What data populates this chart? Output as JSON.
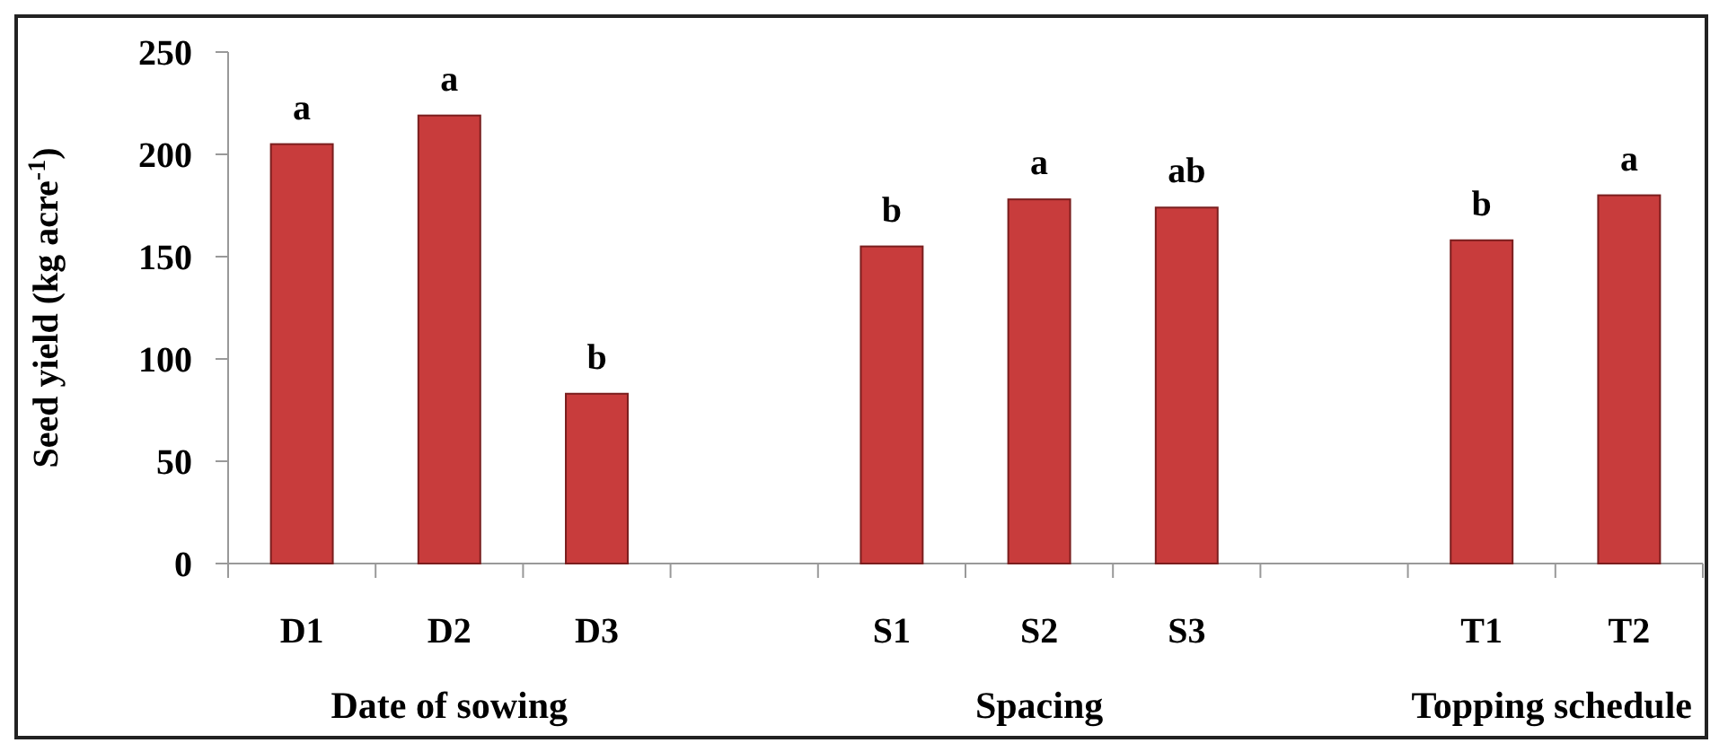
{
  "chart_data": {
    "type": "bar",
    "ylabel": "Seed yield (kg acre$^{-1}$)",
    "categories": [
      "D1",
      "D2",
      "D3",
      null,
      "S1",
      "S2",
      "S3",
      null,
      "T1",
      "T2"
    ],
    "values": [
      205,
      219,
      83,
      null,
      155,
      178,
      174,
      null,
      158,
      180
    ],
    "color": "#c83c3c",
    "ylim": [
      0,
      250
    ],
    "yticks": [
      0,
      50,
      100,
      150,
      200,
      250
    ],
    "grid": false,
    "annotations": [
      {
        "text": "a",
        "x": "D1",
        "y": 205
      },
      {
        "text": "a",
        "x": "D2",
        "y": 219
      },
      {
        "text": "b",
        "x": "D3",
        "y": 83
      },
      {
        "text": "b",
        "x": "S1",
        "y": 155
      },
      {
        "text": "a",
        "x": "S2",
        "y": 178
      },
      {
        "text": "ab",
        "x": "S3",
        "y": 174
      },
      {
        "text": "b",
        "x": "T1",
        "y": 158
      },
      {
        "text": "a",
        "x": "T2",
        "y": 180
      },
      "Date of sowing",
      "Spacing",
      "Topping schedule"
    ]
  }
}
